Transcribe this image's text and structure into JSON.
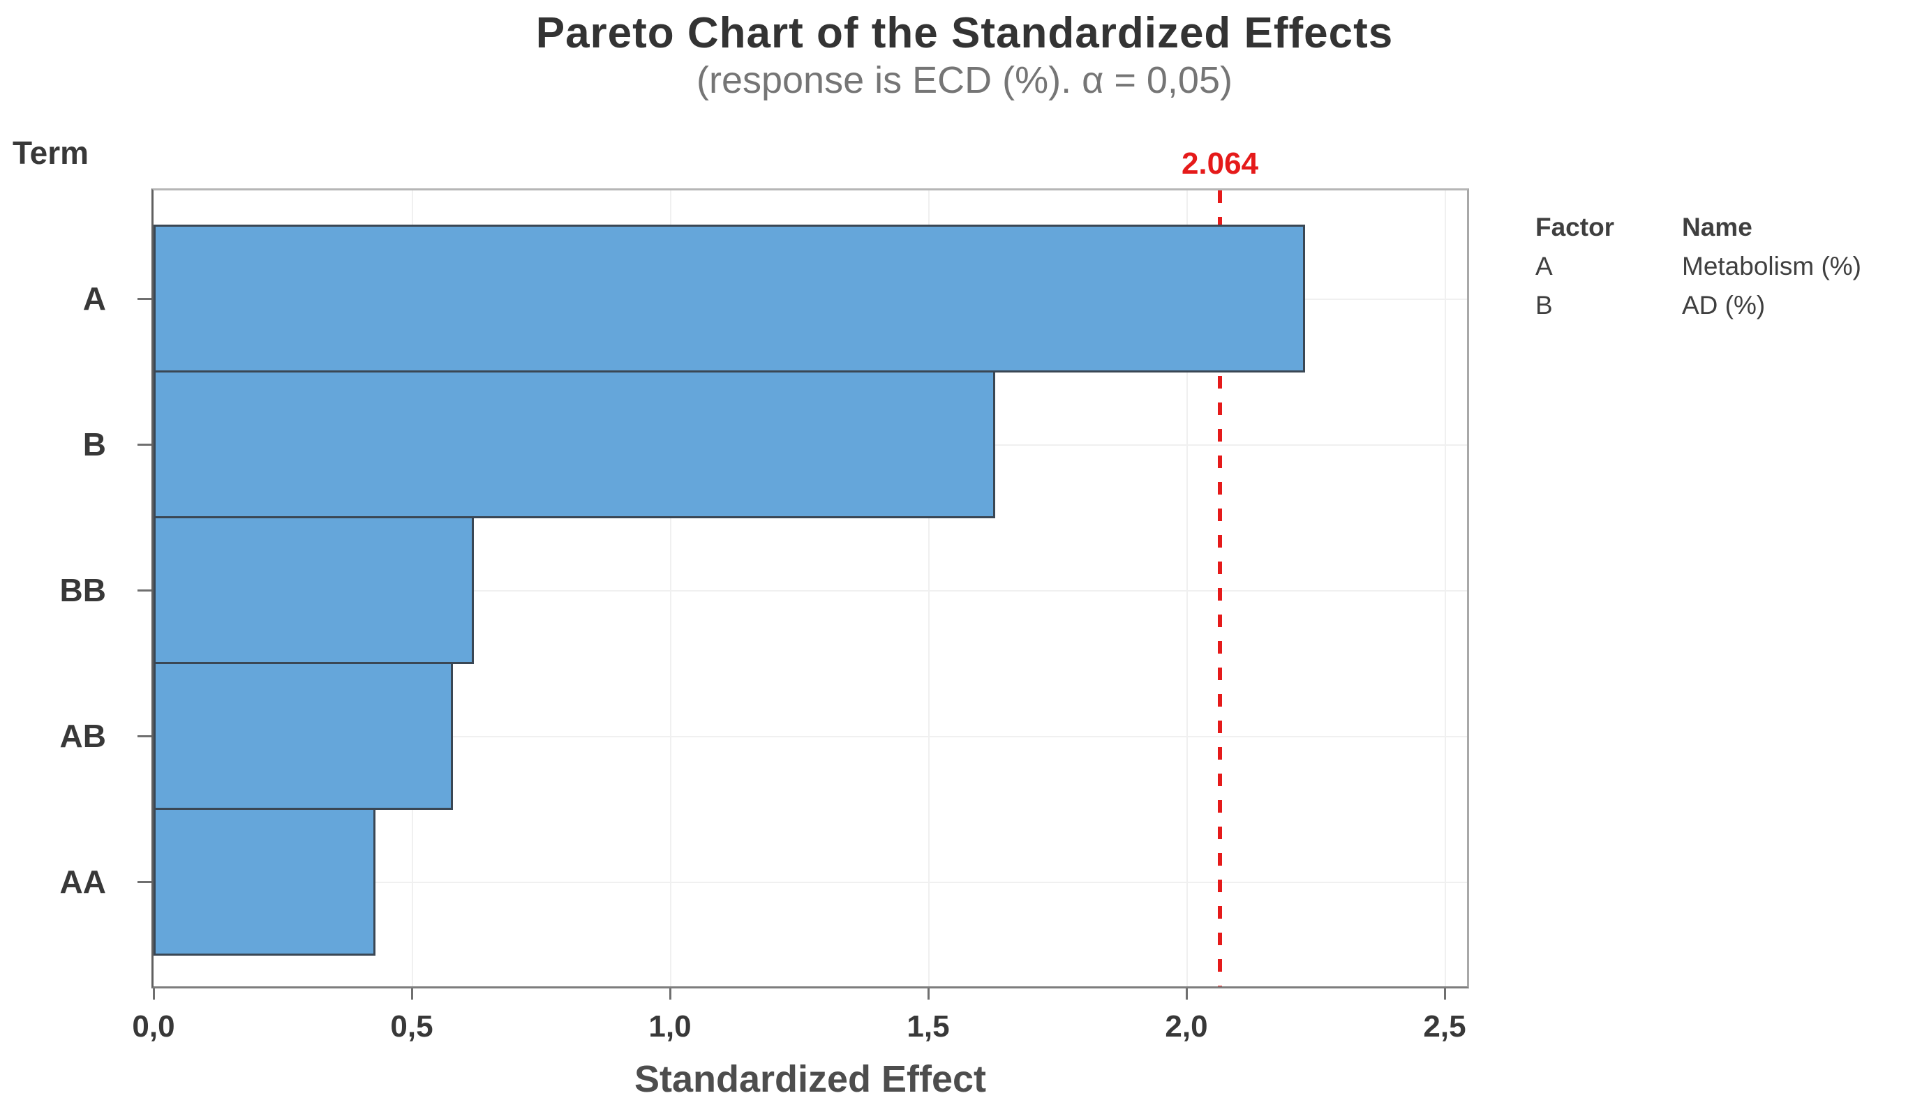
{
  "chart_data": {
    "type": "bar",
    "orientation": "horizontal",
    "title": "Pareto Chart of the Standardized Effects",
    "subtitle": "(response is ECD (%). α = 0,05)",
    "xlabel": "Standardized Effect",
    "ylabel": "Term",
    "categories": [
      "A",
      "B",
      "BB",
      "AB",
      "AA"
    ],
    "values": [
      2.23,
      1.63,
      0.62,
      0.58,
      0.43
    ],
    "x_ticks": [
      {
        "value": 0.0,
        "label": "0,0"
      },
      {
        "value": 0.5,
        "label": "0,5"
      },
      {
        "value": 1.0,
        "label": "1,0"
      },
      {
        "value": 1.5,
        "label": "1,5"
      },
      {
        "value": 2.0,
        "label": "2,0"
      },
      {
        "value": 2.5,
        "label": "2,5"
      }
    ],
    "xlim": [
      0,
      2.543
    ],
    "grid": true,
    "legend_position": "right",
    "reference_line": {
      "value": 2.064,
      "label": "2.064",
      "style": "dashed"
    },
    "legend": {
      "headers": [
        "Factor",
        "Name"
      ],
      "rows": [
        [
          "A",
          "Metabolism (%)"
        ],
        [
          "B",
          "AD (%)"
        ]
      ]
    },
    "colors": {
      "bar_fill": "#65a6da",
      "bar_border": "#3a4754",
      "reference": "#e51a1a",
      "grid": "#f0f0f0",
      "axis_tick": "#6f6f6f"
    }
  }
}
